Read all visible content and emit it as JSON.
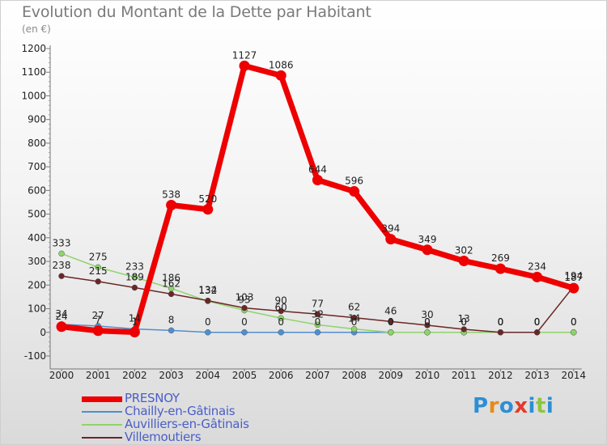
{
  "title": "Evolution du Montant de la Dette par Habitant",
  "subtitle": "(en €)",
  "logo": {
    "text": "Proxiti",
    "colors": [
      "#2c8fd6",
      "#e98a17",
      "#2c8fd6",
      "#e33a2a",
      "#2c8fd6",
      "#8cc63f",
      "#2c8fd6"
    ]
  },
  "chart_data": {
    "type": "line",
    "x": [
      "2000",
      "2001",
      "2002",
      "2003",
      "2004",
      "2005",
      "2006",
      "2007",
      "2008",
      "2009",
      "2010",
      "2011",
      "2012",
      "2013",
      "2014"
    ],
    "ylim": [
      -100,
      1200
    ],
    "yticks": [
      "-100",
      "0",
      "100",
      "200",
      "300",
      "400",
      "500",
      "600",
      "700",
      "800",
      "900",
      "1000",
      "1100",
      "1200"
    ],
    "grid": false,
    "legend_position": "bottom-left",
    "series": [
      {
        "name": "PRESNOY",
        "color": "#ee0000",
        "values": [
          24,
          7,
          1,
          538,
          520,
          1127,
          1086,
          644,
          596,
          394,
          349,
          302,
          269,
          234,
          187
        ],
        "labels": [
          "24",
          "7",
          "1",
          "538",
          "520",
          "1127",
          "1086",
          "644",
          "596",
          "394",
          "349",
          "302",
          "269",
          "234",
          "187"
        ]
      },
      {
        "name": "Chailly-en-Gâtinais",
        "color": "#4f8fd0",
        "values": [
          34,
          27,
          14,
          8,
          0,
          0,
          0,
          0,
          0,
          0,
          0,
          0,
          0,
          0,
          0
        ],
        "labels": [
          "34",
          "27",
          "14",
          "8",
          "0",
          "0",
          "0",
          "0",
          "0",
          "0",
          "0",
          "0",
          "0",
          "0",
          "0"
        ]
      },
      {
        "name": "Auvilliers-en-Gâtinais",
        "color": "#8fd46a",
        "values": [
          333,
          275,
          233,
          186,
          132,
          93,
          60,
          32,
          14,
          0,
          0,
          0,
          0,
          0,
          0
        ],
        "labels": [
          "333",
          "275",
          "233",
          "186",
          "132",
          "93",
          "60",
          "32",
          "14",
          "0",
          "0",
          "0",
          "0",
          "0",
          "0"
        ]
      },
      {
        "name": "Villemoutiers",
        "color": "#6b2626",
        "values": [
          238,
          215,
          189,
          162,
          134,
          103,
          90,
          77,
          62,
          46,
          30,
          13,
          0,
          0,
          194
        ],
        "labels": [
          "238",
          "215",
          "189",
          "162",
          "134",
          "103",
          "90",
          "77",
          "62",
          "46",
          "30",
          "13",
          "0",
          "0",
          "194"
        ]
      }
    ]
  }
}
